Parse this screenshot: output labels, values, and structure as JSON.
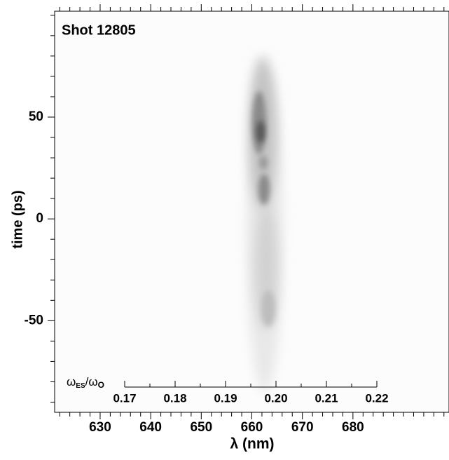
{
  "chart_data": {
    "type": "streak-image",
    "annotation": "Shot 12805",
    "xlabel": "λ (nm)",
    "ylabel": "time (ps)",
    "xlim": [
      621,
      699
    ],
    "xticks": [
      630,
      640,
      650,
      660,
      670,
      680
    ],
    "xminorticks": [
      622,
      624,
      626,
      628,
      632,
      634,
      636,
      638,
      642,
      644,
      646,
      648,
      652,
      654,
      656,
      658,
      662,
      664,
      666,
      668,
      672,
      674,
      676,
      678,
      682,
      684,
      686,
      688,
      690,
      692,
      694,
      696,
      698
    ],
    "ylim": [
      -95,
      102
    ],
    "yticks": [
      -50,
      0,
      50
    ],
    "yminorticks": [
      -90,
      -80,
      -70,
      -60,
      -40,
      -30,
      -20,
      -10,
      10,
      20,
      30,
      40,
      60,
      70,
      80,
      90,
      100
    ],
    "inner_axis": {
      "label": [
        "ω",
        "ES",
        "/ω",
        "O"
      ],
      "lim": [
        0.17,
        0.22
      ],
      "ticks": [
        0.17,
        0.18,
        0.19,
        {
          "value": 0.2,
          "label": "0.20"
        },
        0.21,
        0.22
      ],
      "minorticks": [
        0.175,
        0.185,
        0.195,
        0.205,
        0.215
      ]
    }
  }
}
